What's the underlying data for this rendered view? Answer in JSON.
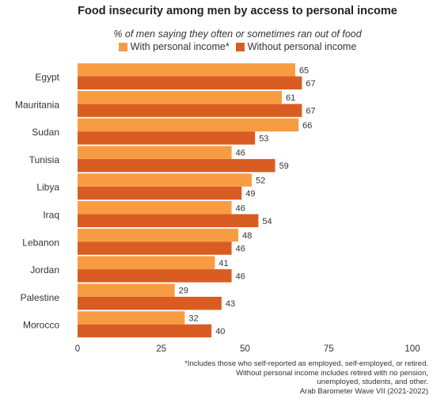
{
  "chart_data": {
    "type": "bar",
    "orientation": "horizontal",
    "title": "Food insecurity among men by access to personal income",
    "subtitle": "% of men saying they often or sometimes ran out of food",
    "categories": [
      "Egypt",
      "Mauritania",
      "Sudan",
      "Tunisia",
      "Libya",
      "Iraq",
      "Lebanon",
      "Jordan",
      "Palestine",
      "Morocco"
    ],
    "series": [
      {
        "name": "With personal income*",
        "color": "#F89C43",
        "values": [
          65,
          61,
          66,
          46,
          52,
          46,
          48,
          41,
          29,
          32
        ]
      },
      {
        "name": "Without personal income",
        "color": "#D95D22",
        "values": [
          67,
          67,
          53,
          59,
          49,
          54,
          46,
          46,
          43,
          40
        ]
      }
    ],
    "xlim": [
      0,
      100
    ],
    "xticks": [
      "0",
      "25",
      "50",
      "75",
      "100"
    ],
    "grid": false,
    "legend_position": "top"
  },
  "footnote": {
    "line1": "*Includes those who self-reported as employed, self-employed, or retired.",
    "line2": "Without personal income includes retired with no pension,",
    "line3": "unemployed, students, and other.",
    "line4": "Arab Barometer Wave VII (2021-2022)"
  }
}
